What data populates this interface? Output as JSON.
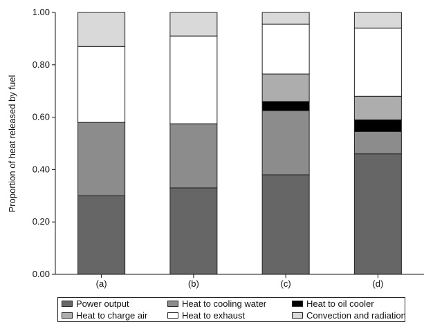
{
  "chart_data": {
    "type": "bar",
    "stacked": true,
    "categories": [
      "(a)",
      "(b)",
      "(c)",
      "(d)"
    ],
    "ylabel": "Proportion of heat released by fuel",
    "xlabel": "",
    "ylim": [
      0,
      1.0
    ],
    "yticks": [
      "0.00",
      "0.20",
      "0.40",
      "0.60",
      "0.80",
      "1.00"
    ],
    "grid": false,
    "legend_position": "bottom",
    "series": [
      {
        "name": "Power output",
        "color": "#666666",
        "values": [
          0.3,
          0.33,
          0.38,
          0.46
        ]
      },
      {
        "name": "Heat to cooling water",
        "color": "#8c8c8c",
        "values": [
          0.28,
          0.245,
          0.245,
          0.085
        ]
      },
      {
        "name": "Heat to oil cooler",
        "color": "#000000",
        "values": [
          0,
          0,
          0.035,
          0.045
        ]
      },
      {
        "name": "Heat to charge air",
        "color": "#adadad",
        "values": [
          0,
          0,
          0.105,
          0.09
        ]
      },
      {
        "name": "Heat to exhaust",
        "color": "#ffffff",
        "values": [
          0.29,
          0.335,
          0.19,
          0.26
        ]
      },
      {
        "name": "Convection and radiation",
        "color": "#d9d9d9",
        "values": [
          0.13,
          0.09,
          0.045,
          0.06
        ]
      }
    ]
  }
}
